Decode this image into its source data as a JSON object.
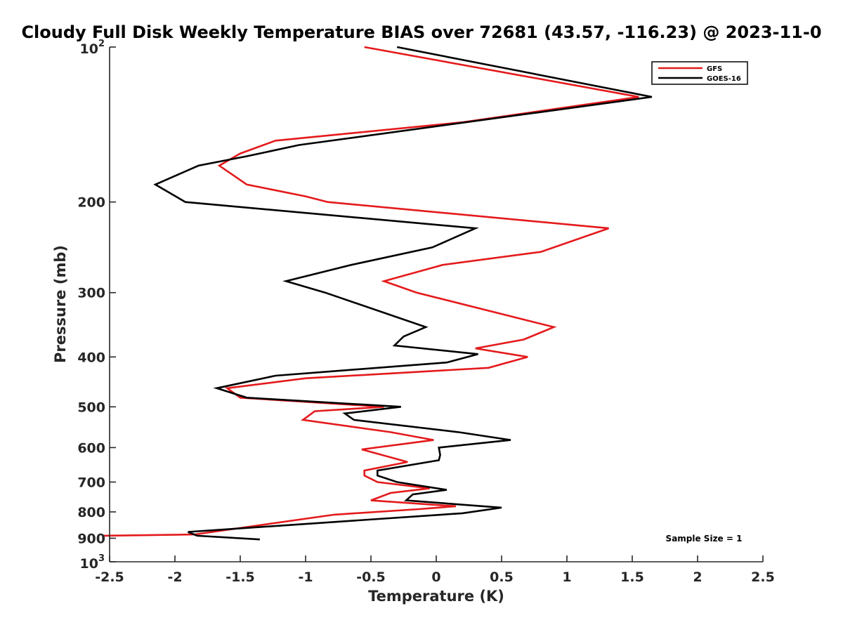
{
  "chart_data": {
    "type": "line",
    "title": "Cloudy Full Disk Weekly Temperature BIAS over 72681 (43.57, -116.23) @ 2023-11-0",
    "xlabel": "Temperature (K)",
    "ylabel": "Pressure (mb)",
    "xlim": [
      -2.5,
      2.5
    ],
    "ylim": [
      100,
      1000
    ],
    "y_scale": "log",
    "y_reversed": true,
    "grid": false,
    "legend_position": "top-right",
    "x_ticks": [
      {
        "value": -2.5,
        "label": "-2.5"
      },
      {
        "value": -2,
        "label": "-2"
      },
      {
        "value": -1.5,
        "label": "-1.5"
      },
      {
        "value": -1,
        "label": "-1"
      },
      {
        "value": -0.5,
        "label": "-0.5"
      },
      {
        "value": 0,
        "label": "0"
      },
      {
        "value": 0.5,
        "label": "0.5"
      },
      {
        "value": 1,
        "label": "1"
      },
      {
        "value": 1.5,
        "label": "1.5"
      },
      {
        "value": 2,
        "label": "2"
      },
      {
        "value": 2.5,
        "label": "2.5"
      }
    ],
    "y_ticks": [
      {
        "value": 100,
        "base": "10",
        "exp": "2"
      },
      {
        "value": 200,
        "label": "200"
      },
      {
        "value": 300,
        "label": "300"
      },
      {
        "value": 400,
        "label": "400"
      },
      {
        "value": 500,
        "label": "500"
      },
      {
        "value": 600,
        "label": "600"
      },
      {
        "value": 700,
        "label": "700"
      },
      {
        "value": 800,
        "label": "800"
      },
      {
        "value": 900,
        "label": "900"
      },
      {
        "value": 1000,
        "base": "10",
        "exp": "3"
      }
    ],
    "series": [
      {
        "name": "GFS",
        "color": "#e41a1c",
        "points": [
          {
            "x": -0.55,
            "y": 100
          },
          {
            "x": 1.55,
            "y": 125
          },
          {
            "x": 0.2,
            "y": 140
          },
          {
            "x": -1.23,
            "y": 152
          },
          {
            "x": -1.5,
            "y": 161
          },
          {
            "x": -1.66,
            "y": 170
          },
          {
            "x": -1.45,
            "y": 185
          },
          {
            "x": -1.0,
            "y": 195
          },
          {
            "x": -0.83,
            "y": 200
          },
          {
            "x": 1.32,
            "y": 225
          },
          {
            "x": 0.8,
            "y": 250
          },
          {
            "x": 0.05,
            "y": 265
          },
          {
            "x": -0.4,
            "y": 285
          },
          {
            "x": -0.15,
            "y": 300
          },
          {
            "x": 0.9,
            "y": 350
          },
          {
            "x": 0.67,
            "y": 370
          },
          {
            "x": 0.3,
            "y": 385
          },
          {
            "x": 0.7,
            "y": 400
          },
          {
            "x": 0.4,
            "y": 420
          },
          {
            "x": -1.0,
            "y": 440
          },
          {
            "x": -1.6,
            "y": 460
          },
          {
            "x": -1.5,
            "y": 480
          },
          {
            "x": -0.4,
            "y": 500
          },
          {
            "x": -0.93,
            "y": 510
          },
          {
            "x": -1.02,
            "y": 530
          },
          {
            "x": -0.35,
            "y": 560
          },
          {
            "x": -0.02,
            "y": 580
          },
          {
            "x": -0.57,
            "y": 605
          },
          {
            "x": -0.22,
            "y": 640
          },
          {
            "x": -0.55,
            "y": 665
          },
          {
            "x": -0.55,
            "y": 680
          },
          {
            "x": -0.45,
            "y": 700
          },
          {
            "x": -0.05,
            "y": 720
          },
          {
            "x": -0.35,
            "y": 735
          },
          {
            "x": -0.5,
            "y": 760
          },
          {
            "x": 0.15,
            "y": 780
          },
          {
            "x": -0.13,
            "y": 790
          },
          {
            "x": -0.78,
            "y": 810
          },
          {
            "x": -1.85,
            "y": 885
          },
          {
            "x": -2.55,
            "y": 890
          }
        ]
      },
      {
        "name": "GOES-16",
        "color": "#000000",
        "points": [
          {
            "x": -0.3,
            "y": 100
          },
          {
            "x": 1.65,
            "y": 125
          },
          {
            "x": -1.05,
            "y": 155
          },
          {
            "x": -1.45,
            "y": 163
          },
          {
            "x": -1.82,
            "y": 170
          },
          {
            "x": -2.15,
            "y": 185
          },
          {
            "x": -1.92,
            "y": 200
          },
          {
            "x": 0.3,
            "y": 225
          },
          {
            "x": -0.03,
            "y": 245
          },
          {
            "x": -0.65,
            "y": 265
          },
          {
            "x": -1.15,
            "y": 285
          },
          {
            "x": -0.85,
            "y": 300
          },
          {
            "x": -0.08,
            "y": 350
          },
          {
            "x": -0.25,
            "y": 365
          },
          {
            "x": -0.32,
            "y": 380
          },
          {
            "x": 0.32,
            "y": 395
          },
          {
            "x": 0.08,
            "y": 410
          },
          {
            "x": -1.23,
            "y": 435
          },
          {
            "x": -1.68,
            "y": 460
          },
          {
            "x": -1.45,
            "y": 480
          },
          {
            "x": -0.27,
            "y": 500
          },
          {
            "x": -0.7,
            "y": 515
          },
          {
            "x": -0.63,
            "y": 530
          },
          {
            "x": 0.17,
            "y": 560
          },
          {
            "x": 0.57,
            "y": 580
          },
          {
            "x": 0.02,
            "y": 600
          },
          {
            "x": 0.03,
            "y": 620
          },
          {
            "x": 0.02,
            "y": 635
          },
          {
            "x": -0.45,
            "y": 665
          },
          {
            "x": -0.45,
            "y": 680
          },
          {
            "x": -0.3,
            "y": 700
          },
          {
            "x": 0.08,
            "y": 725
          },
          {
            "x": -0.18,
            "y": 740
          },
          {
            "x": -0.23,
            "y": 760
          },
          {
            "x": 0.5,
            "y": 785
          },
          {
            "x": 0.2,
            "y": 805
          },
          {
            "x": -1.9,
            "y": 875
          },
          {
            "x": -1.83,
            "y": 890
          },
          {
            "x": -1.35,
            "y": 905
          }
        ]
      }
    ],
    "annotations": [
      {
        "text": "Sample Size = 1",
        "position": "bottom-right"
      }
    ]
  }
}
